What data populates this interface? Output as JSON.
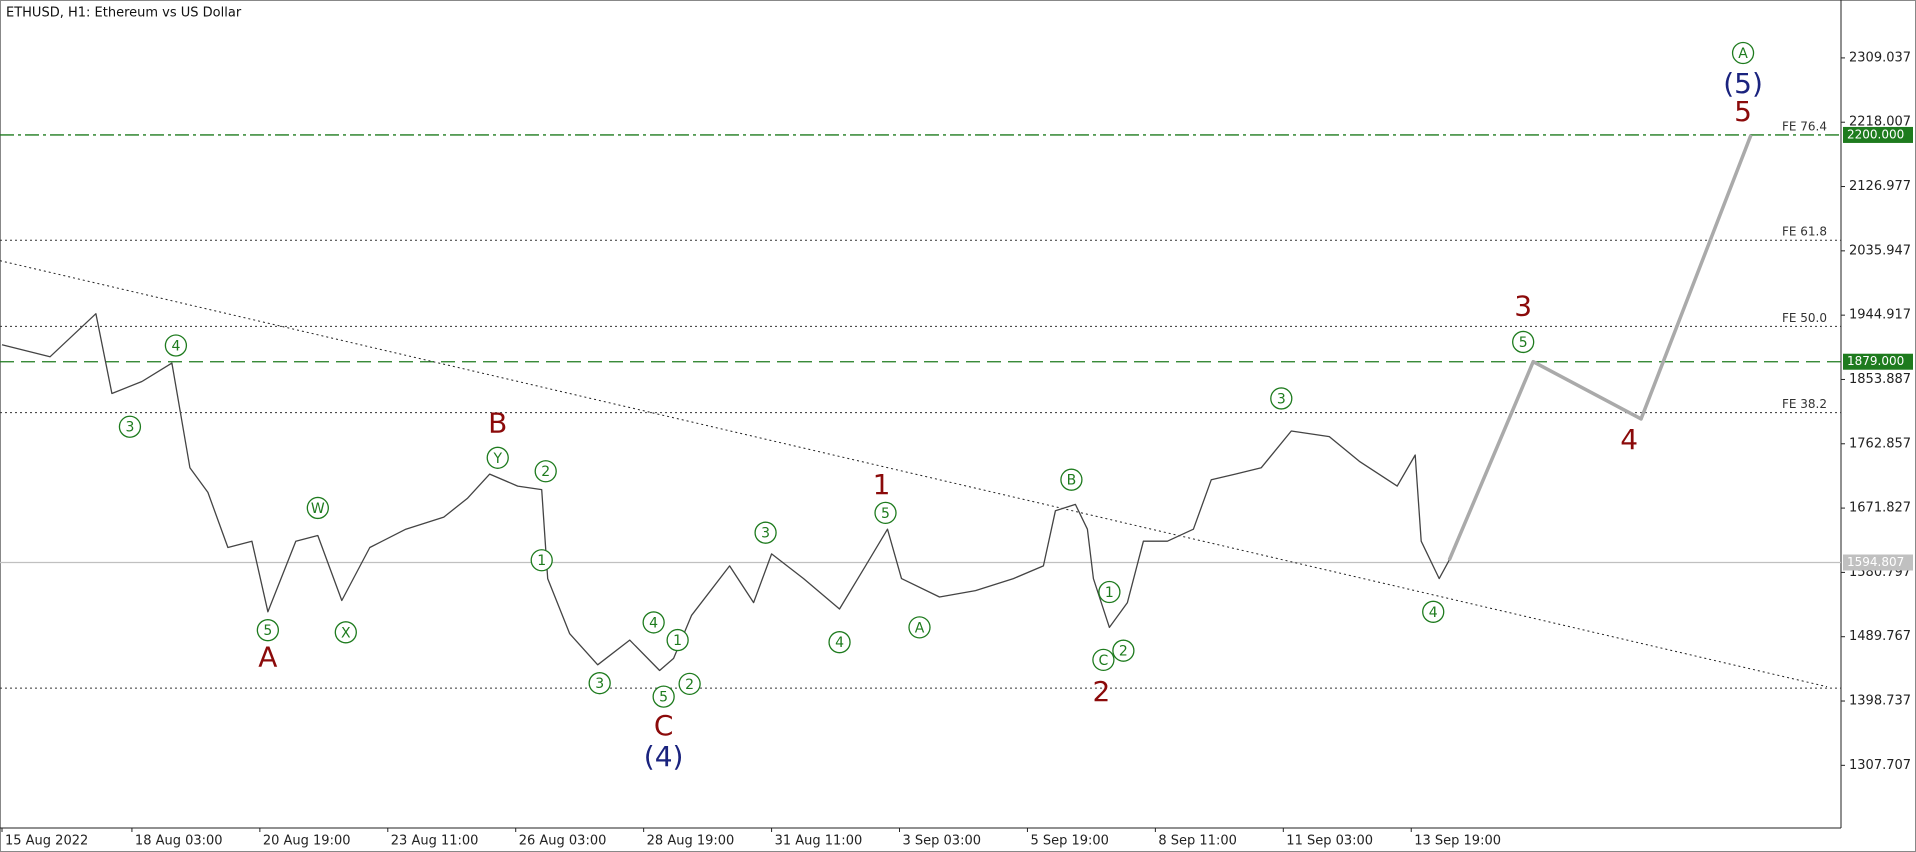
{
  "chart_data": {
    "type": "line",
    "title": "ETHUSD, H1:  Ethereum vs US Dollar",
    "xlim": [
      9,
      930
    ],
    "xticks": [
      {
        "value": 10,
        "label": "15 Aug 2022"
      },
      {
        "value": 75,
        "label": "18 Aug 03:00"
      },
      {
        "value": 139,
        "label": "20 Aug 19:00"
      },
      {
        "value": 203,
        "label": "23 Aug 11:00"
      },
      {
        "value": 267,
        "label": "26 Aug 03:00"
      },
      {
        "value": 331,
        "label": "28 Aug 19:00"
      },
      {
        "value": 395,
        "label": "31 Aug 11:00"
      },
      {
        "value": 459,
        "label": "3 Sep 03:00"
      },
      {
        "value": 523,
        "label": "5 Sep 19:00"
      },
      {
        "value": 587,
        "label": "8 Sep 11:00"
      },
      {
        "value": 651,
        "label": "11 Sep 03:00"
      },
      {
        "value": 715,
        "label": "13 Sep 19:00"
      }
    ],
    "ylim": [
      1219,
      2391
    ],
    "yticks": [
      2309.037,
      2218.007,
      2126.977,
      2035.947,
      1944.917,
      1853.887,
      1762.857,
      1671.827,
      1580.797,
      1489.767,
      1398.737,
      1307.707
    ],
    "grid": false,
    "series": [
      {
        "color": "#444444",
        "width": 1.3,
        "x": [
          10,
          34,
          57,
          65,
          80,
          95,
          104,
          113,
          123,
          135,
          143,
          157,
          168,
          180,
          194,
          212,
          231,
          243,
          254,
          268,
          280,
          283,
          294,
          308,
          324,
          339,
          346,
          355,
          374,
          386,
          395,
          411,
          429,
          442,
          453,
          460,
          479,
          497,
          516,
          531,
          537,
          547,
          553,
          556,
          564,
          573,
          581,
          593,
          606,
          615,
          627,
          640,
          655,
          674,
          689,
          708,
          717,
          720,
          729,
          734
        ],
        "values": [
          1903,
          1886,
          1947,
          1834,
          1851,
          1877,
          1729,
          1694,
          1616,
          1625,
          1525,
          1625,
          1633,
          1541,
          1616,
          1642,
          1659,
          1686,
          1720,
          1703,
          1698,
          1572,
          1494,
          1450,
          1485,
          1442,
          1459,
          1520,
          1590,
          1538,
          1607,
          1572,
          1529,
          1590,
          1642,
          1572,
          1546,
          1555,
          1572,
          1590,
          1668,
          1677,
          1642,
          1572,
          1503,
          1538,
          1625,
          1625,
          1642,
          1712,
          1720,
          1729,
          1781,
          1773,
          1738,
          1703,
          1747,
          1625,
          1572,
          1598
        ]
      },
      {
        "color": "#aaaaaa",
        "width": 3.5,
        "x": [
          734,
          776,
          830,
          885
        ],
        "values": [
          1598,
          1879,
          1798,
          2200
        ]
      }
    ],
    "levels": [
      {
        "label": "FE 76.4",
        "value": 2200,
        "price_tag": "2200.000",
        "color": "#1e7b1e",
        "dash": "dashdot"
      },
      {
        "label": "FE 61.8",
        "value": 2051,
        "color": "#333333",
        "dash": "dotted"
      },
      {
        "label": "FE 50.0",
        "value": 1929,
        "color": "#333333",
        "dash": "dotted"
      },
      {
        "value": 1879,
        "price_tag": "1879.000",
        "color": "#1e7b1e",
        "dash": "dashed"
      },
      {
        "label": "FE 38.2",
        "value": 1807,
        "color": "#333333",
        "dash": "dotted"
      },
      {
        "value": 1594.807,
        "price_tag": "1594.807",
        "color": "#c0c0c0",
        "dash": "solid"
      },
      {
        "value": 1417,
        "color": "#333333",
        "dash": "dotted"
      }
    ],
    "trendlines": [
      {
        "x": [
          9,
          923
        ],
        "y": [
          2022,
          1419
        ],
        "color": "#222222"
      }
    ],
    "wave_labels": [
      {
        "text": "3",
        "x": 74,
        "y": 1787,
        "color": "#1e7b1e",
        "circled": true
      },
      {
        "text": "4",
        "x": 97,
        "y": 1902,
        "color": "#1e7b1e",
        "circled": true
      },
      {
        "text": "5",
        "x": 143,
        "y": 1499,
        "color": "#1e7b1e",
        "circled": true
      },
      {
        "text": "W",
        "x": 168,
        "y": 1672,
        "color": "#1e7b1e",
        "circled": true
      },
      {
        "text": "X",
        "x": 182,
        "y": 1496,
        "color": "#1e7b1e",
        "circled": true
      },
      {
        "text": "Y",
        "x": 258,
        "y": 1743,
        "color": "#1e7b1e",
        "circled": true
      },
      {
        "text": "2",
        "x": 282,
        "y": 1724,
        "color": "#1e7b1e",
        "circled": true
      },
      {
        "text": "1",
        "x": 280,
        "y": 1598,
        "color": "#1e7b1e",
        "circled": true
      },
      {
        "text": "3",
        "x": 309,
        "y": 1424,
        "color": "#1e7b1e",
        "circled": true
      },
      {
        "text": "4",
        "x": 336,
        "y": 1510,
        "color": "#1e7b1e",
        "circled": true
      },
      {
        "text": "1",
        "x": 348,
        "y": 1485,
        "color": "#1e7b1e",
        "circled": true
      },
      {
        "text": "5",
        "x": 341,
        "y": 1405,
        "color": "#1e7b1e",
        "circled": true
      },
      {
        "text": "2",
        "x": 354,
        "y": 1423,
        "color": "#1e7b1e",
        "circled": true
      },
      {
        "text": "3",
        "x": 392,
        "y": 1637,
        "color": "#1e7b1e",
        "circled": true
      },
      {
        "text": "5",
        "x": 452,
        "y": 1665,
        "color": "#1e7b1e",
        "circled": true
      },
      {
        "text": "4",
        "x": 429,
        "y": 1482,
        "color": "#1e7b1e",
        "circled": true
      },
      {
        "text": "A",
        "x": 469,
        "y": 1503,
        "color": "#1e7b1e",
        "circled": true
      },
      {
        "text": "B",
        "x": 545,
        "y": 1712,
        "color": "#1e7b1e",
        "circled": true
      },
      {
        "text": "1",
        "x": 564,
        "y": 1553,
        "color": "#1e7b1e",
        "circled": true
      },
      {
        "text": "C",
        "x": 561,
        "y": 1457,
        "color": "#1e7b1e",
        "circled": true
      },
      {
        "text": "2",
        "x": 571,
        "y": 1470,
        "color": "#1e7b1e",
        "circled": true
      },
      {
        "text": "3",
        "x": 650,
        "y": 1827,
        "color": "#1e7b1e",
        "circled": true
      },
      {
        "text": "5",
        "x": 771,
        "y": 1907,
        "color": "#1e7b1e",
        "circled": true
      },
      {
        "text": "4",
        "x": 726,
        "y": 1525,
        "color": "#1e7b1e",
        "circled": true
      },
      {
        "text": "A",
        "x": 881,
        "y": 2316,
        "color": "#1e7b1e",
        "circled": true
      },
      {
        "text": "A",
        "x": 143,
        "y": 1459,
        "color": "#8b0a0a",
        "circled": false
      },
      {
        "text": "B",
        "x": 258,
        "y": 1790,
        "color": "#8b0a0a",
        "circled": false
      },
      {
        "text": "C",
        "x": 341,
        "y": 1362,
        "color": "#8b0a0a",
        "circled": false
      },
      {
        "text": "1",
        "x": 450,
        "y": 1703,
        "color": "#8b0a0a",
        "circled": false
      },
      {
        "text": "2",
        "x": 560,
        "y": 1410,
        "color": "#8b0a0a",
        "circled": false
      },
      {
        "text": "3",
        "x": 771,
        "y": 1956,
        "color": "#8b0a0a",
        "circled": false
      },
      {
        "text": "4",
        "x": 824,
        "y": 1767,
        "color": "#8b0a0a",
        "circled": false
      },
      {
        "text": "5",
        "x": 881,
        "y": 2231,
        "color": "#8b0a0a",
        "circled": false
      },
      {
        "text": "(4)",
        "x": 341,
        "y": 1318,
        "color": "#1a237e",
        "circled": false
      },
      {
        "text": "(5)",
        "x": 881,
        "y": 2271,
        "color": "#1a237e",
        "circled": false
      }
    ]
  }
}
